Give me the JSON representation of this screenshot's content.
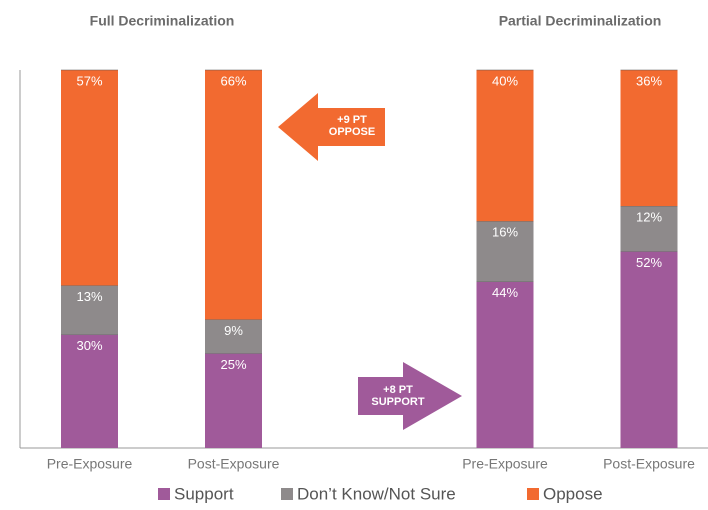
{
  "chart_data": {
    "type": "stacked-bar",
    "group_titles": [
      "Full Decriminalization",
      "Partial Decriminalization"
    ],
    "categories": [
      "Pre-Exposure",
      "Post-Exposure",
      "Pre-Exposure",
      "Post-Exposure"
    ],
    "series": [
      {
        "name": "Support",
        "color": "#a05a9a",
        "values": [
          30,
          25,
          44,
          52
        ],
        "value_labels": [
          "30%",
          "25%",
          "44%",
          "52%"
        ]
      },
      {
        "name": "Don’t Know/Not Sure",
        "color": "#8e8a8b",
        "values": [
          13,
          9,
          16,
          12
        ],
        "value_labels": [
          "13%",
          "9%",
          "16%",
          "12%"
        ]
      },
      {
        "name": "Oppose",
        "color": "#f26a30",
        "values": [
          57,
          66,
          40,
          36
        ],
        "value_labels": [
          "57%",
          "66%",
          "40%",
          "36%"
        ]
      }
    ],
    "ylim": [
      0,
      100
    ],
    "annotations": [
      [
        "+9 PT",
        "OPPOSE"
      ],
      [
        "+8 PT",
        "SUPPORT"
      ]
    ],
    "legend": "bottom"
  }
}
